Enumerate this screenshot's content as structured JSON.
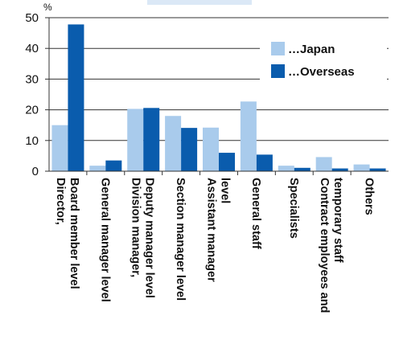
{
  "chart_data": {
    "type": "bar",
    "title": "",
    "unit_label": "%",
    "ylim": [
      0,
      50
    ],
    "yticks": [
      0,
      10,
      20,
      30,
      40,
      50
    ],
    "grid": true,
    "legend_position": "top-right",
    "categories": [
      [
        "Director,",
        "Board member level"
      ],
      [
        "General manager level"
      ],
      [
        "Division manager,",
        "Deputy manager level"
      ],
      [
        "Section manager level"
      ],
      [
        "Assistant manager",
        "level"
      ],
      [
        "General staff"
      ],
      [
        "Specialists"
      ],
      [
        "Contract employees and",
        "temporary staff"
      ],
      [
        "Others"
      ]
    ],
    "series": [
      {
        "name": "…Japan",
        "color": "#a9cbec",
        "values": [
          15,
          1.8,
          20.3,
          18,
          14.2,
          22.7,
          1.8,
          4.6,
          2.2
        ]
      },
      {
        "name": "…Overseas",
        "color": "#0a5cad",
        "values": [
          47.8,
          3.5,
          20.6,
          14.1,
          6,
          5.4,
          1.1,
          0.9,
          0.9
        ]
      }
    ]
  }
}
